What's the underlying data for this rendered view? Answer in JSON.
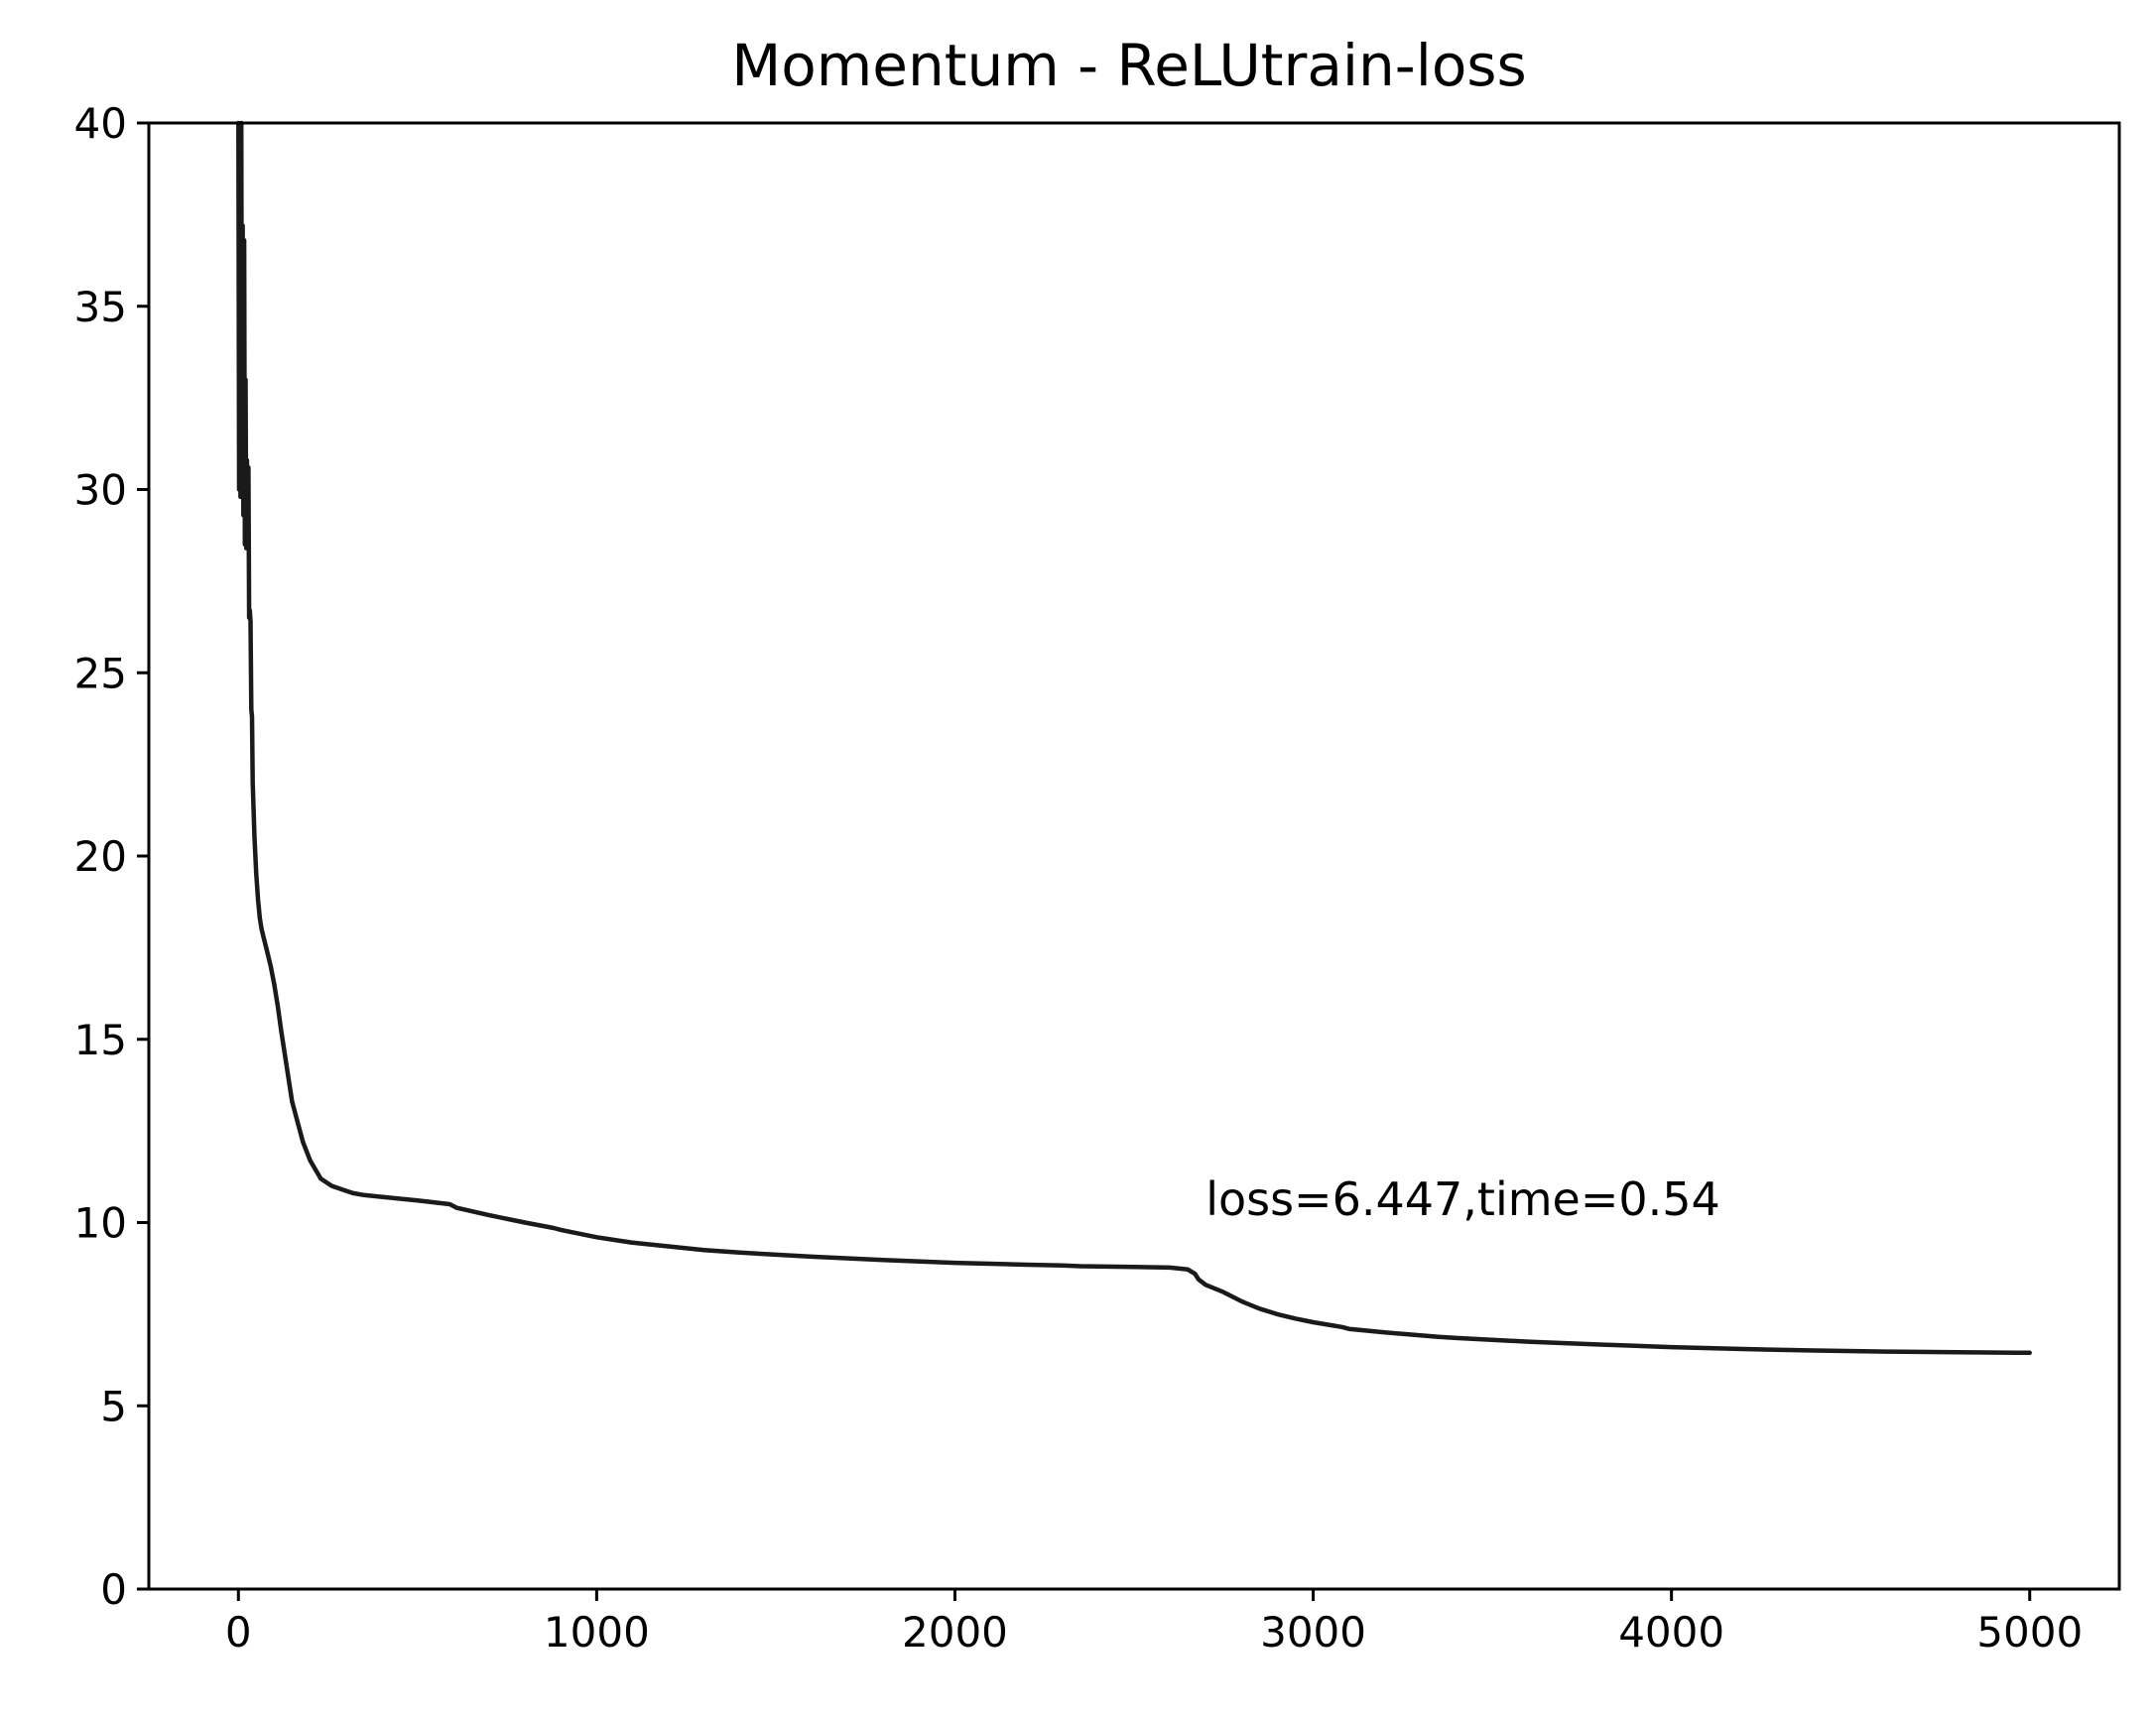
{
  "chart_data": {
    "type": "line",
    "title": "Momentum - ReLUtrain-loss",
    "xlabel": "",
    "ylabel": "",
    "xlim": [
      -250,
      5250
    ],
    "ylim": [
      0,
      40
    ],
    "xticks": [
      0,
      1000,
      2000,
      3000,
      4000,
      5000
    ],
    "xtick_labels": [
      "0",
      "1000",
      "2000",
      "3000",
      "4000",
      "5000"
    ],
    "yticks": [
      0,
      5,
      10,
      15,
      20,
      25,
      30,
      35,
      40
    ],
    "ytick_labels": [
      "0",
      "5",
      "10",
      "15",
      "20",
      "25",
      "30",
      "35",
      "40"
    ],
    "grid": false,
    "line_color": "#1a1a1a",
    "annotation": {
      "text": "loss=6.447,time=0.54",
      "x": 2700,
      "y": 10.2
    },
    "series": [
      {
        "x": [
          0,
          2,
          4,
          6,
          8,
          10,
          12,
          14,
          16,
          18,
          20,
          22,
          24,
          26,
          28,
          30,
          32,
          34,
          36,
          38,
          40,
          45,
          50,
          55,
          60,
          65,
          70,
          80,
          90,
          100,
          110,
          120,
          150,
          180,
          200,
          230,
          260,
          290,
          320,
          350,
          400,
          500,
          590,
          610,
          700,
          800,
          880,
          900,
          1000,
          1100,
          1200,
          1300,
          1400,
          1600,
          1800,
          2000,
          2200,
          2300,
          2350,
          2500,
          2600,
          2650,
          2670,
          2680,
          2700,
          2750,
          2800,
          2850,
          2900,
          2950,
          3000,
          3050,
          3080,
          3100,
          3200,
          3300,
          3350,
          3400,
          3600,
          3800,
          4000,
          4200,
          4400,
          4600,
          4800,
          5000
        ],
        "y": [
          40,
          30.0,
          39.5,
          29.8,
          40,
          30.5,
          37.2,
          29.3,
          36.8,
          28.5,
          33.0,
          28.4,
          30.8,
          29.2,
          30.6,
          26.5,
          26.7,
          26.4,
          24.0,
          23.8,
          22.0,
          20.5,
          19.5,
          18.8,
          18.3,
          18.0,
          17.8,
          17.4,
          17.0,
          16.5,
          15.9,
          15.2,
          13.3,
          12.2,
          11.7,
          11.2,
          11.0,
          10.9,
          10.8,
          10.75,
          10.7,
          10.6,
          10.5,
          10.4,
          10.2,
          10.0,
          9.85,
          9.8,
          9.6,
          9.45,
          9.35,
          9.25,
          9.18,
          9.07,
          8.98,
          8.9,
          8.85,
          8.83,
          8.81,
          8.79,
          8.77,
          8.72,
          8.6,
          8.45,
          8.3,
          8.1,
          7.85,
          7.65,
          7.5,
          7.38,
          7.28,
          7.2,
          7.15,
          7.1,
          7.0,
          6.92,
          6.88,
          6.85,
          6.75,
          6.67,
          6.6,
          6.55,
          6.51,
          6.48,
          6.46,
          6.447
        ]
      }
    ]
  }
}
